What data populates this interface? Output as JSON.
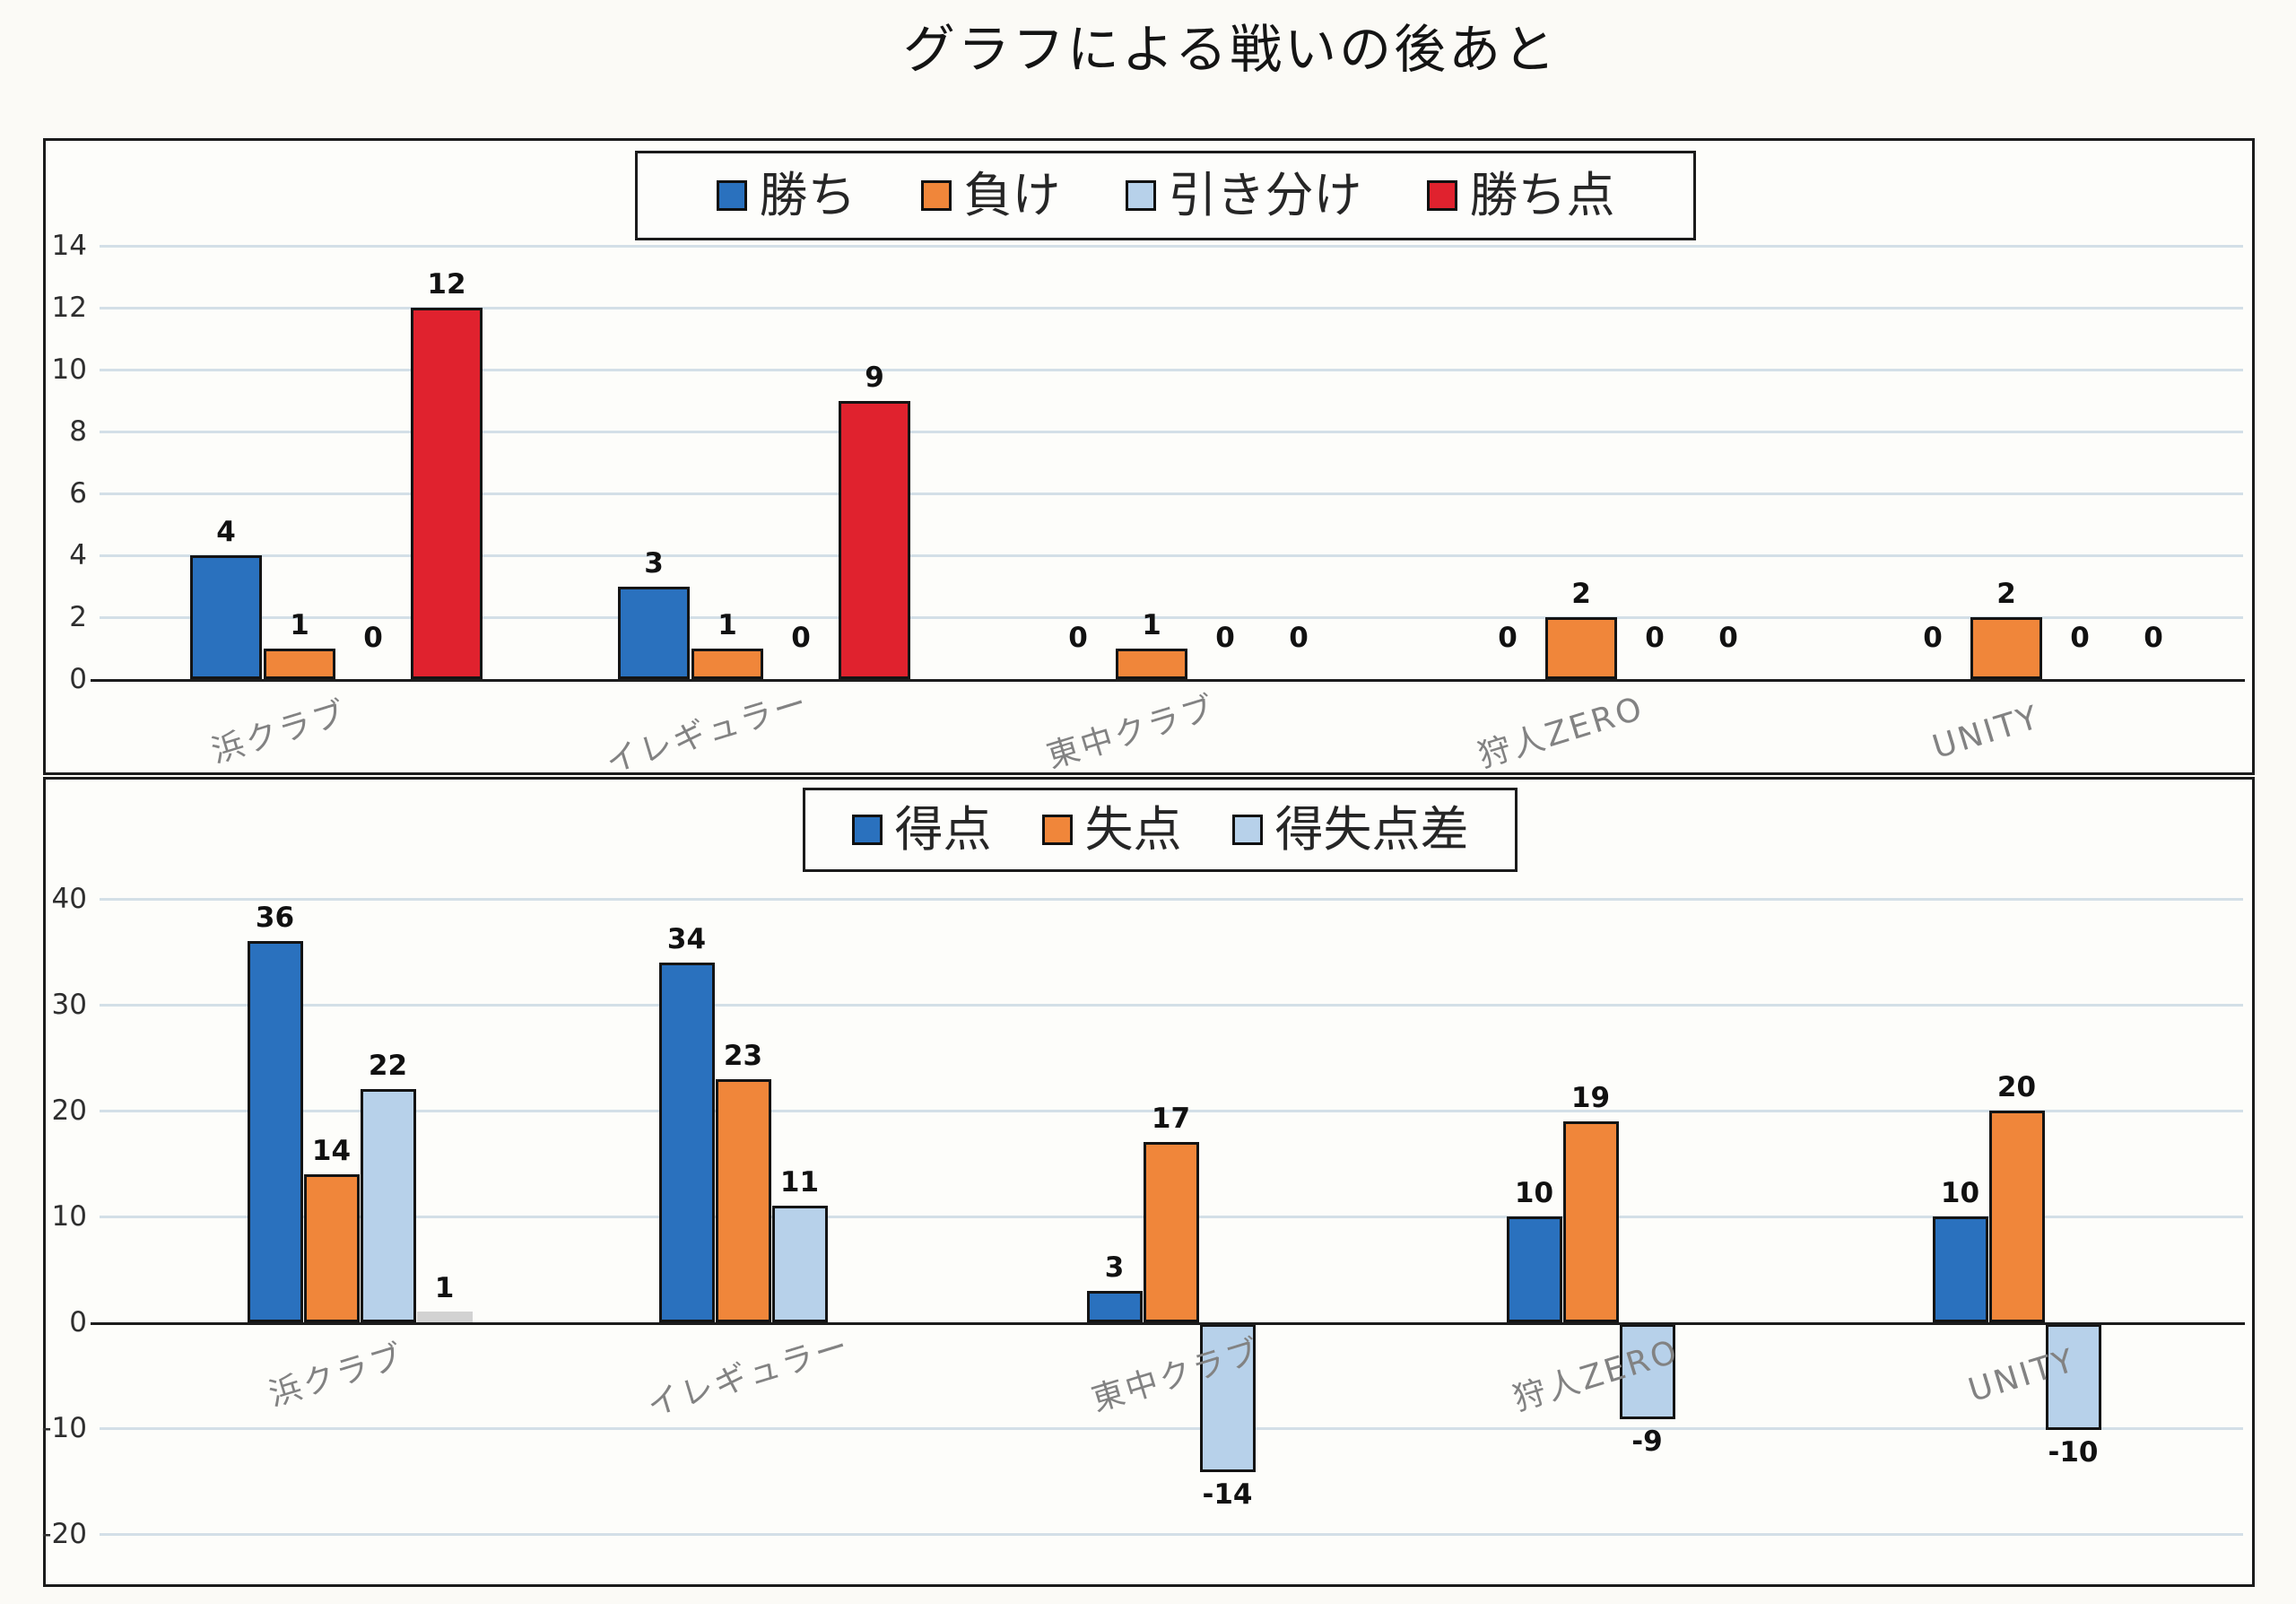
{
  "title": "グラフによる戦いの後あと",
  "chart_data": [
    {
      "id": "results",
      "type": "bar",
      "categories": [
        "浜クラブ",
        "イレギュラー",
        "東中クラブ",
        "狩人ZERO",
        "UNITY"
      ],
      "legend": [
        "勝ち",
        "負け",
        "引き分け",
        "勝ち点"
      ],
      "legend_position": "top",
      "series": [
        {
          "label": "勝ち",
          "color": "#2A71BE",
          "values": [
            4,
            3,
            0,
            0,
            0
          ]
        },
        {
          "label": "負け",
          "color": "#F0863A",
          "values": [
            1,
            1,
            1,
            2,
            2
          ]
        },
        {
          "label": "引き分け",
          "color": "#B7D1EA",
          "values": [
            0,
            0,
            0,
            0,
            0
          ]
        },
        {
          "label": "勝ち点",
          "color": "#E0222E",
          "values": [
            12,
            9,
            0,
            0,
            0
          ]
        }
      ],
      "ylim": [
        0,
        14
      ],
      "yticks": [
        0,
        2,
        4,
        6,
        8,
        10,
        12,
        14
      ],
      "grid": true,
      "grid_color": "#CBD9E3",
      "axis_color": "#1C1C1C"
    },
    {
      "id": "goals",
      "type": "bar",
      "categories": [
        "浜クラブ",
        "イレギュラー",
        "東中クラブ",
        "狩人ZERO",
        "UNITY"
      ],
      "legend": [
        "得点",
        "失点",
        "得失点差"
      ],
      "legend_position": "top",
      "series": [
        {
          "label": "得点",
          "color": "#2A71BE",
          "values": [
            36,
            34,
            3,
            10,
            10
          ]
        },
        {
          "label": "失点",
          "color": "#F0863A",
          "values": [
            14,
            23,
            17,
            19,
            20
          ]
        },
        {
          "label": "得失点差",
          "color": "#B7D1EA",
          "values": [
            22,
            11,
            -14,
            -9,
            -10
          ]
        },
        {
          "label": "",
          "color": "#D2D2D2",
          "values": [
            1,
            null,
            null,
            null,
            null
          ],
          "outlined": false,
          "in_legend": false
        }
      ],
      "ylim": [
        -20,
        40
      ],
      "yticks": [
        -20,
        -10,
        0,
        10,
        20,
        30,
        40
      ],
      "grid": true,
      "grid_color": "#CBD9E3",
      "axis_color": "#1C1C1C"
    }
  ]
}
